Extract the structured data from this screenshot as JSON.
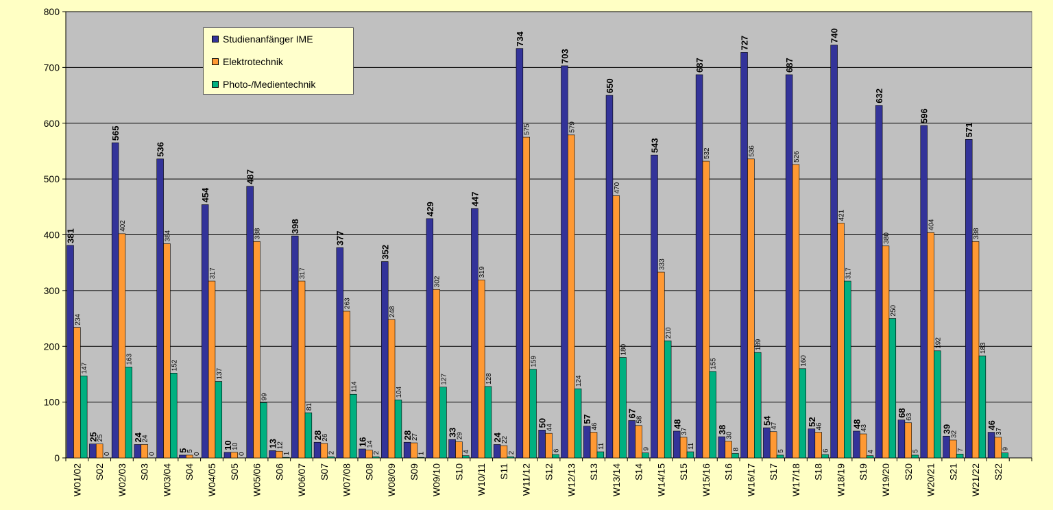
{
  "colors": {
    "background": "#ffffc4",
    "plot_area": "#c0c0c0",
    "grid": "#000000"
  },
  "chart_data": {
    "type": "bar",
    "categories": [
      "W01/02",
      "S02",
      "W02/03",
      "S03",
      "W03/04",
      "S04",
      "W04/05",
      "S05",
      "W05/06",
      "S06",
      "W06/07",
      "S07",
      "W07/08",
      "S08",
      "W08/09",
      "S09",
      "W09/10",
      "S10",
      "W10/11",
      "S11",
      "W11/12",
      "S12",
      "W12/13",
      "S13",
      "W13/14",
      "S14",
      "W14/15",
      "S15",
      "W15/16",
      "S16",
      "W16/17",
      "S17",
      "W17/18",
      "S18",
      "W18/19",
      "S19",
      "W19/20",
      "S20",
      "W20/21",
      "S21",
      "W21/22",
      "S22",
      ""
    ],
    "series": [
      {
        "name": "Studienanfänger IME",
        "color": "#333399",
        "values": [
          381,
          25,
          565,
          24,
          536,
          5,
          454,
          10,
          487,
          13,
          398,
          28,
          377,
          16,
          352,
          28,
          429,
          33,
          447,
          24,
          734,
          50,
          703,
          57,
          650,
          67,
          543,
          48,
          687,
          38,
          727,
          54,
          687,
          52,
          740,
          48,
          632,
          68,
          596,
          39,
          571,
          46,
          null
        ]
      },
      {
        "name": "Elektrotechnik",
        "color": "#ff9933",
        "values": [
          234,
          25,
          402,
          24,
          384,
          5,
          317,
          10,
          388,
          12,
          317,
          26,
          263,
          14,
          248,
          27,
          302,
          29,
          319,
          22,
          575,
          44,
          579,
          46,
          470,
          58,
          333,
          37,
          532,
          30,
          536,
          47,
          526,
          46,
          421,
          43,
          380,
          63,
          404,
          32,
          388,
          37,
          null
        ]
      },
      {
        "name": "Photo-/Medientechnik",
        "color": "#00b080",
        "values": [
          147,
          0,
          163,
          0,
          152,
          0,
          137,
          0,
          99,
          1,
          81,
          2,
          114,
          2,
          104,
          1,
          127,
          4,
          128,
          2,
          159,
          6,
          124,
          11,
          180,
          9,
          210,
          11,
          155,
          8,
          189,
          5,
          160,
          6,
          317,
          4,
          250,
          5,
          192,
          7,
          183,
          9,
          null
        ]
      }
    ],
    "ylim": [
      0,
      800
    ],
    "yticks": [
      0,
      100,
      200,
      300,
      400,
      500,
      600,
      700,
      800
    ],
    "grid": true,
    "legend_position": "top-left"
  }
}
